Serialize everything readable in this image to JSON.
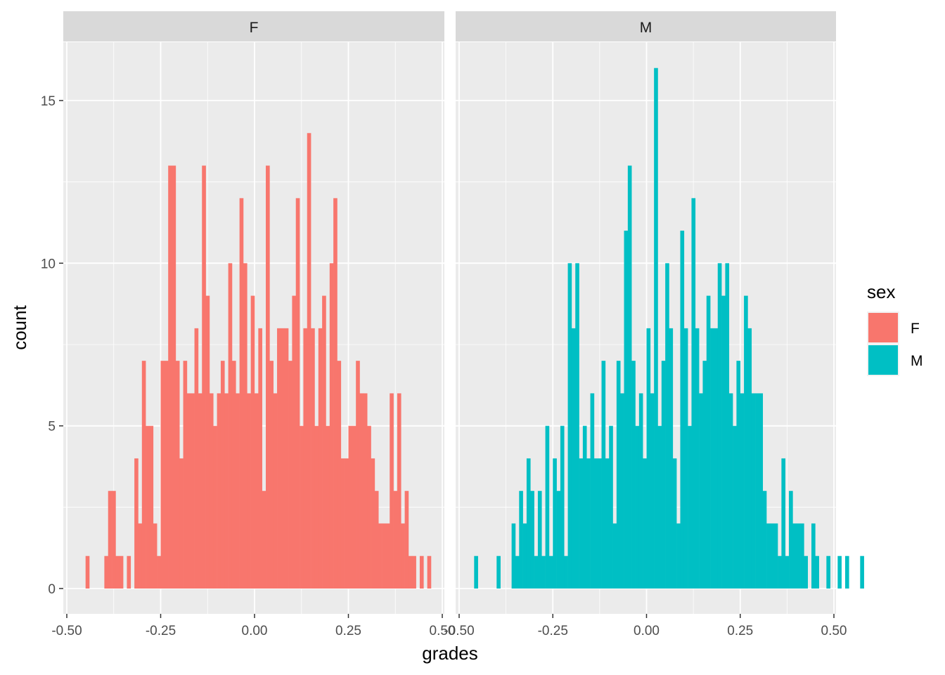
{
  "chart_data": {
    "type": "bar",
    "subtype": "faceted-histogram",
    "xlabel": "grades",
    "ylabel": "count",
    "xlim": [
      -0.5,
      0.5
    ],
    "ylim": [
      0,
      16
    ],
    "x_ticks": [
      -0.5,
      -0.25,
      0.0,
      0.25,
      0.5
    ],
    "x_tick_labels": [
      "-0.50",
      "-0.25",
      "0.00",
      "0.25",
      "0.50"
    ],
    "y_ticks": [
      0,
      5,
      10,
      15
    ],
    "y_tick_labels": [
      "0",
      "5",
      "10",
      "15"
    ],
    "bin_width": 0.01,
    "background": "#ebebeb",
    "strip_background": "#d9d9d9",
    "grid": true,
    "legend": {
      "title": "sex",
      "position": "right",
      "entries": [
        {
          "label": "F",
          "color": "#F8766D"
        },
        {
          "label": "M",
          "color": "#00BFC4"
        }
      ]
    },
    "facets": [
      {
        "name": "F",
        "color": "#F8766D",
        "x_start": -0.45,
        "counts": [
          1,
          0,
          0,
          0,
          0,
          1,
          3,
          3,
          1,
          1,
          0,
          1,
          0,
          4,
          2,
          7,
          5,
          5,
          2,
          1,
          7,
          7,
          13,
          13,
          7,
          4,
          7,
          6,
          6,
          8,
          6,
          13,
          9,
          6,
          5,
          6,
          7,
          6,
          10,
          7,
          6,
          12,
          10,
          6,
          9,
          6,
          8,
          3,
          13,
          7,
          6,
          8,
          8,
          8,
          7,
          9,
          12,
          5,
          8,
          14,
          8,
          5,
          8,
          9,
          5,
          10,
          12,
          7,
          4,
          4,
          5,
          5,
          7,
          6,
          6,
          5,
          4,
          3,
          2,
          2,
          2,
          6,
          3,
          6,
          2,
          3,
          1,
          1,
          0,
          1,
          0,
          1
        ]
      },
      {
        "name": "M",
        "color": "#00BFC4",
        "x_start": -0.46,
        "counts": [
          1,
          0,
          0,
          0,
          0,
          0,
          1,
          0,
          0,
          0,
          2,
          1,
          3,
          2,
          4,
          3,
          1,
          3,
          1,
          5,
          1,
          4,
          3,
          5,
          1,
          10,
          8,
          10,
          4,
          5,
          4,
          6,
          4,
          4,
          7,
          4,
          5,
          2,
          7,
          6,
          11,
          13,
          7,
          5,
          6,
          4,
          8,
          6,
          16,
          5,
          7,
          10,
          8,
          4,
          2,
          11,
          8,
          5,
          12,
          8,
          6,
          7,
          9,
          8,
          8,
          10,
          9,
          10,
          6,
          5,
          7,
          6,
          9,
          8,
          6,
          6,
          6,
          3,
          2,
          2,
          2,
          1,
          4,
          1,
          3,
          2,
          2,
          2,
          1,
          0,
          2,
          1,
          0,
          0,
          1,
          0,
          0,
          1,
          0,
          1,
          0,
          0,
          0,
          1
        ]
      }
    ]
  }
}
